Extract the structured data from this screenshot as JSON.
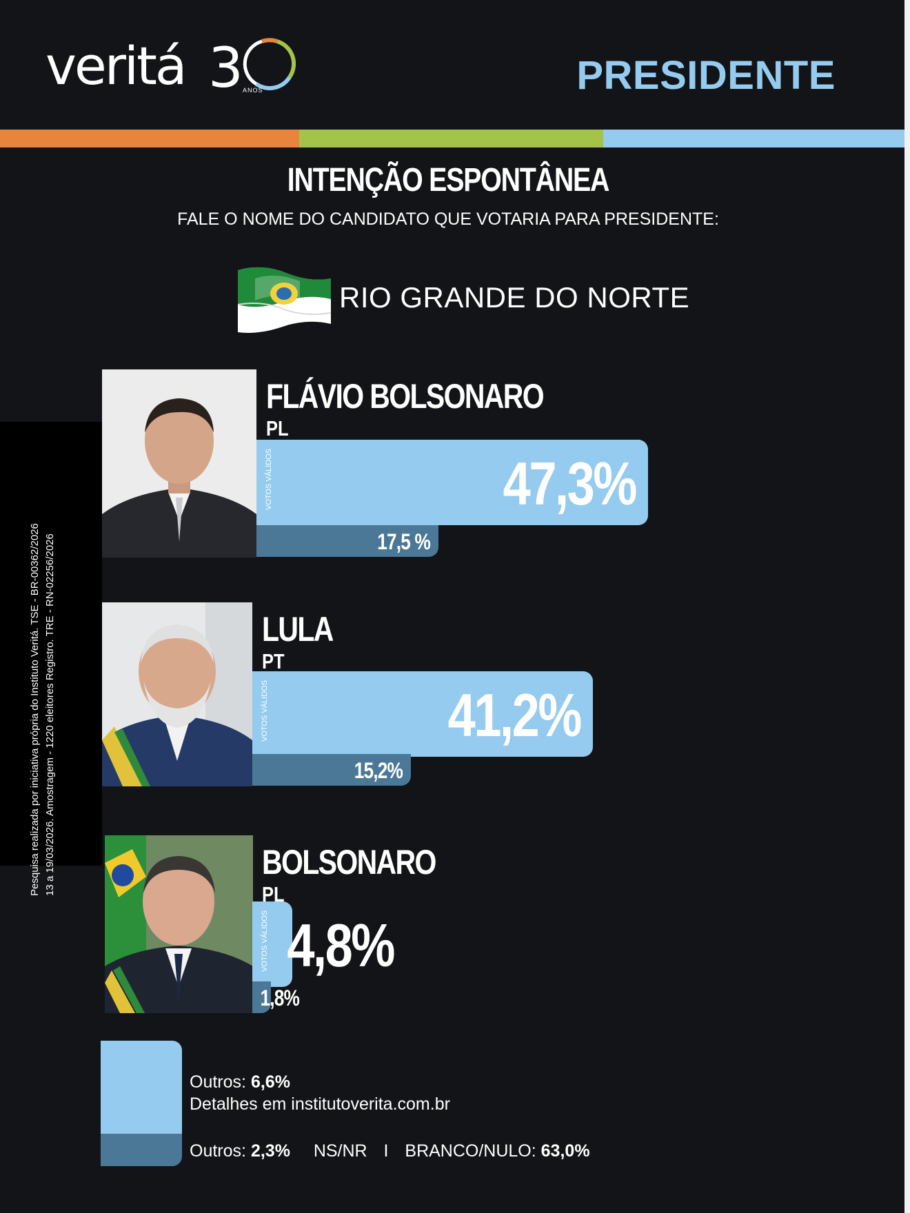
{
  "header": {
    "brand": "veritá",
    "anniversary": "30",
    "anniversary_suffix": "ANOS",
    "office": "PRESIDENTE",
    "stripe_colors": [
      "#e8843c",
      "#a3c449",
      "#95cbef"
    ]
  },
  "survey": {
    "title": "INTENÇÃO ESPONTÂNEA",
    "question": "FALE O NOME DO CANDIDATO QUE VOTARIA PARA PRESIDENTE:",
    "region": "RIO GRANDE DO NORTE"
  },
  "side_note": {
    "line1": "Pesquisa realizada por iniciativa própria do Instituto Veritá. TSE - BR-00362/2026",
    "line2": "13 a 19/03/2026. Amostragem - 1220 eleitores Registro. TRE - RN-02256/2026"
  },
  "chart_data": {
    "type": "bar",
    "orientation": "horizontal",
    "categories": [
      "FLÁVIO BOLSONARO",
      "LULA",
      "BOLSONARO"
    ],
    "parties": [
      "PL",
      "PT",
      "PL"
    ],
    "series": [
      {
        "name": "VOTOS VÁLIDOS",
        "values": [
          47.3,
          41.2,
          4.8
        ],
        "labels": [
          "47,3%",
          "41,2%",
          "4,8%"
        ],
        "color": "#95cbef"
      },
      {
        "values": [
          17.5,
          15.2,
          1.8
        ],
        "labels": [
          "17,5 %",
          "15,2%",
          "1,8%"
        ],
        "color": "#4b7896"
      }
    ],
    "grid": false
  },
  "legend": {
    "others_valid_label": "Outros:",
    "others_valid_value": "6,6%",
    "details": "Detalhes em institutoverita.com.br",
    "others_total_label": "Outros:",
    "others_total_value": "2,3%",
    "nsnr_label": "NS/NR",
    "separator": "I",
    "blank_label": "BRANCO/NULO:",
    "blank_value": "63,0%"
  }
}
